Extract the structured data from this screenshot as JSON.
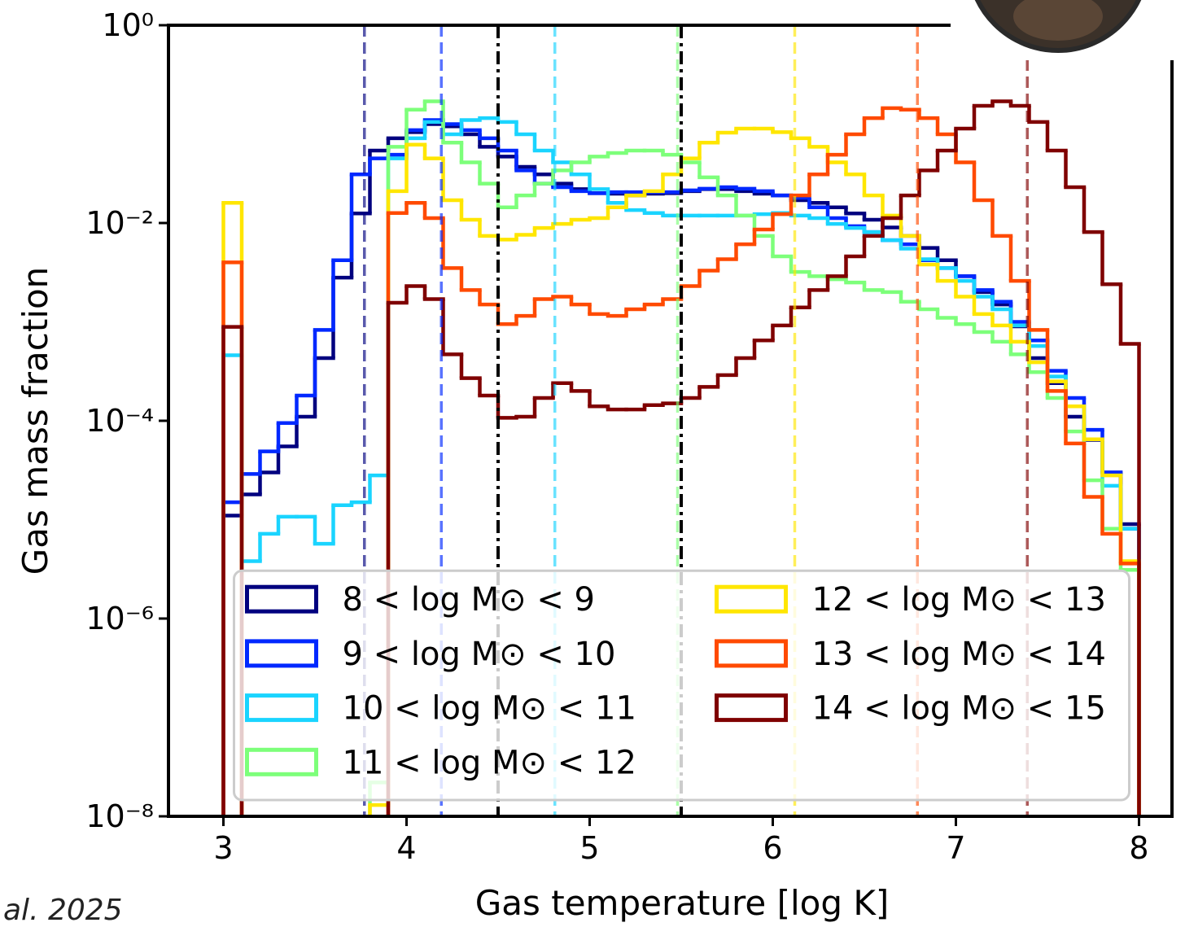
{
  "chart_data": {
    "type": "histogram",
    "xlabel": "Gas temperature [log K]",
    "ylabel": "Gas mass fraction",
    "xlim": [
      2.7,
      8.18
    ],
    "ylim": [
      1e-08,
      1
    ],
    "yscale": "log",
    "xticks": [
      3,
      4,
      5,
      6,
      7,
      8
    ],
    "yticks": [
      {
        "value": 1,
        "label": "10⁰"
      },
      {
        "value": 0.01,
        "label": "10⁻²"
      },
      {
        "value": 0.0001,
        "label": "10⁻⁴"
      },
      {
        "value": 1e-06,
        "label": "10⁻⁶"
      },
      {
        "value": 1e-08,
        "label": "10⁻⁸"
      }
    ],
    "legend": "lower center",
    "legend_columns": 2,
    "bins": [
      3.0,
      3.1,
      3.2,
      3.3,
      3.4,
      3.5,
      3.6,
      3.7,
      3.8,
      3.9,
      4.0,
      4.1,
      4.2,
      4.3,
      4.4,
      4.5,
      4.6,
      4.7,
      4.8,
      4.9,
      5.0,
      5.1,
      5.2,
      5.3,
      5.4,
      5.5,
      5.6,
      5.7,
      5.8,
      5.9,
      6.0,
      6.1,
      6.2,
      6.3,
      6.4,
      6.5,
      6.6,
      6.7,
      6.8,
      6.9,
      7.0,
      7.1,
      7.2,
      7.3,
      7.4,
      7.5,
      7.6,
      7.7,
      7.8,
      7.9,
      8.0
    ],
    "thresholds": [
      4.5,
      5.5
    ],
    "threshold_color": "#000000",
    "series": [
      {
        "name": "8 < log M⊙ < 9",
        "color": "#00007f",
        "vline": 3.77,
        "values": [
          1.1e-05,
          1.8e-05,
          3e-05,
          5.5e-05,
          0.00011,
          0.00043,
          0.0028,
          0.0125,
          0.054,
          0.072,
          0.083,
          0.1,
          0.095,
          0.079,
          0.059,
          0.047,
          0.037,
          0.031,
          0.025,
          0.022,
          0.02,
          0.0198,
          0.019,
          0.0198,
          0.02,
          0.021,
          0.022,
          0.022,
          0.021,
          0.0198,
          0.019,
          0.017,
          0.016,
          0.0144,
          0.0125,
          0.0108,
          0.009,
          0.0074,
          0.0056,
          0.0042,
          0.0029,
          0.002,
          0.0015,
          0.0009,
          0.00043,
          0.00024,
          0.00011,
          6.4e-05,
          3e-05,
          9e-06
        ]
      },
      {
        "name": "9 < log M⊙ < 10",
        "color": "#0028ff",
        "vline": 4.19,
        "values": [
          1.5e-05,
          2.9e-05,
          4.9e-05,
          9.5e-05,
          0.00018,
          0.00083,
          0.0042,
          0.031,
          0.045,
          0.049,
          0.087,
          0.11,
          0.1,
          0.087,
          0.072,
          0.054,
          0.034,
          0.025,
          0.023,
          0.021,
          0.02,
          0.0205,
          0.0205,
          0.0205,
          0.0205,
          0.0214,
          0.0222,
          0.023,
          0.0222,
          0.021,
          0.019,
          0.018,
          0.0144,
          0.0112,
          0.0093,
          0.0081,
          0.0067,
          0.0061,
          0.0042,
          0.0035,
          0.0029,
          0.0021,
          0.0016,
          0.001,
          0.00065,
          0.00032,
          0.00017,
          8.1e-05,
          3e-05,
          8.1e-06
        ]
      },
      {
        "name": "10 < log M⊙ < 11",
        "color": "#1ad4ff",
        "vline": 4.81,
        "values": [
          0.00046,
          3.8e-06,
          7.2e-06,
          1.07e-05,
          1.07e-05,
          5.7e-06,
          1.4e-05,
          1.5e-05,
          2.8e-05,
          0.045,
          0.072,
          0.105,
          0.079,
          0.11,
          0.115,
          0.105,
          0.079,
          0.054,
          0.041,
          0.031,
          0.022,
          0.016,
          0.0135,
          0.0126,
          0.0119,
          0.0119,
          0.0119,
          0.0119,
          0.0119,
          0.0123,
          0.0126,
          0.0119,
          0.0112,
          0.0098,
          0.0089,
          0.0081,
          0.0067,
          0.0055,
          0.0043,
          0.0035,
          0.0026,
          0.0018,
          0.00134,
          0.00092,
          0.00057,
          0.00028,
          0.00014,
          6.5e-05,
          2.2e-05,
          8.1e-06
        ]
      },
      {
        "name": "11 < log M⊙ < 12",
        "color": "#7dff7a",
        "vline": 5.48,
        "values": [
          null,
          null,
          null,
          null,
          null,
          null,
          null,
          null,
          2.2e-08,
          0.059,
          0.14,
          0.17,
          0.065,
          0.041,
          0.025,
          0.0144,
          0.019,
          0.025,
          0.034,
          0.041,
          0.047,
          0.051,
          0.054,
          0.054,
          0.049,
          0.041,
          0.029,
          0.019,
          0.0119,
          0.0074,
          0.0046,
          0.0032,
          0.0029,
          0.0027,
          0.0025,
          0.0021,
          0.002,
          0.0016,
          0.00134,
          0.0011,
          0.00095,
          0.00079,
          0.00063,
          0.00047,
          0.00031,
          0.00017,
          7.8e-05,
          2.5e-05,
          8.1e-06,
          3.1e-06
        ]
      },
      {
        "name": "12 < log M⊙ < 13",
        "color": "#ffe600",
        "vline": 6.12,
        "values": [
          0.016,
          null,
          null,
          null,
          null,
          null,
          null,
          null,
          1.3e-08,
          0.021,
          0.062,
          0.045,
          0.017,
          0.0108,
          0.0074,
          0.0068,
          0.0076,
          0.0089,
          0.0098,
          0.0108,
          0.0112,
          0.0144,
          0.019,
          0.021,
          0.031,
          0.045,
          0.065,
          0.082,
          0.09,
          0.09,
          0.083,
          0.072,
          0.059,
          0.041,
          0.031,
          0.019,
          0.0119,
          0.0074,
          0.0038,
          0.0026,
          0.0018,
          0.0012,
          0.00092,
          0.00063,
          0.00039,
          0.00025,
          0.00014,
          6.5e-05,
          2.8e-05,
          3.8e-06
        ]
      },
      {
        "name": "13 < log M⊙ < 14",
        "color": "#ff4a00",
        "vline": 6.79,
        "values": [
          0.004,
          null,
          null,
          null,
          null,
          null,
          null,
          null,
          null,
          0.0126,
          0.016,
          0.0112,
          0.0035,
          0.0021,
          0.0015,
          0.00095,
          0.00115,
          0.0017,
          0.0018,
          0.0015,
          0.0012,
          0.00115,
          0.00134,
          0.0015,
          0.0017,
          0.0023,
          0.0033,
          0.0043,
          0.0061,
          0.0086,
          0.0123,
          0.019,
          0.031,
          0.049,
          0.079,
          0.115,
          0.145,
          0.14,
          0.115,
          0.079,
          0.041,
          0.017,
          0.0074,
          0.0026,
          0.00083,
          0.0002,
          5.9e-05,
          1.7e-05,
          7.2e-06,
          3.6e-06
        ]
      },
      {
        "name": "14 < log M⊙ < 15",
        "color": "#7f0000",
        "vline": 7.39,
        "values": [
          0.00089,
          null,
          null,
          null,
          null,
          null,
          null,
          null,
          null,
          0.00156,
          0.0023,
          0.0017,
          0.00047,
          0.00027,
          0.00018,
          0.000107,
          0.00011,
          0.00017,
          0.00024,
          0.0002,
          0.00014,
          0.00013,
          0.00013,
          0.000144,
          0.00015,
          0.00017,
          0.00022,
          0.00029,
          0.00043,
          0.00065,
          0.00092,
          0.0014,
          0.0021,
          0.0029,
          0.0046,
          0.0074,
          0.0112,
          0.019,
          0.034,
          0.054,
          0.09,
          0.153,
          0.17,
          0.153,
          0.105,
          0.054,
          0.023,
          0.0081,
          0.0024,
          0.0006
        ]
      }
    ]
  },
  "citation": "al. 2025"
}
